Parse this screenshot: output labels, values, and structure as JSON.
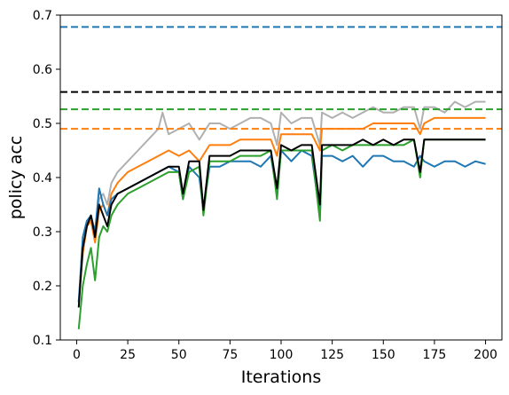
{
  "chart_data": {
    "type": "line",
    "xlabel": "Iterations",
    "ylabel": "policy acc",
    "xlim": [
      -8,
      208
    ],
    "ylim": [
      0.1,
      0.7
    ],
    "xticks": [
      0,
      25,
      50,
      75,
      100,
      125,
      150,
      175,
      200
    ],
    "yticks": [
      0.1,
      0.2,
      0.3,
      0.4,
      0.5,
      0.6,
      0.7
    ],
    "grid": false,
    "legend": "none",
    "baselines": [
      {
        "color": "#1f77b4",
        "y": 0.678
      },
      {
        "color": "#000000",
        "y": 0.558
      },
      {
        "color": "#2ca02c",
        "y": 0.526
      },
      {
        "color": "#ff7f0e",
        "y": 0.49
      }
    ],
    "series": [
      {
        "color": "#b0b0b0",
        "x": [
          1,
          3,
          5,
          7,
          9,
          11,
          13,
          15,
          17,
          20,
          25,
          30,
          35,
          40,
          42,
          45,
          50,
          55,
          60,
          65,
          70,
          75,
          80,
          85,
          90,
          95,
          98,
          100,
          105,
          110,
          115,
          119,
          120,
          125,
          130,
          135,
          140,
          145,
          150,
          155,
          160,
          165,
          168,
          170,
          175,
          180,
          185,
          190,
          195,
          200
        ],
        "y": [
          0.17,
          0.26,
          0.31,
          0.33,
          0.29,
          0.36,
          0.37,
          0.35,
          0.39,
          0.41,
          0.43,
          0.45,
          0.47,
          0.49,
          0.52,
          0.48,
          0.49,
          0.5,
          0.47,
          0.5,
          0.5,
          0.49,
          0.5,
          0.51,
          0.51,
          0.5,
          0.46,
          0.52,
          0.5,
          0.51,
          0.51,
          0.46,
          0.52,
          0.51,
          0.52,
          0.51,
          0.52,
          0.53,
          0.52,
          0.52,
          0.53,
          0.53,
          0.49,
          0.53,
          0.53,
          0.52,
          0.54,
          0.53,
          0.54,
          0.54
        ]
      },
      {
        "color": "#ff7f0e",
        "x": [
          1,
          3,
          5,
          7,
          9,
          11,
          13,
          15,
          17,
          20,
          25,
          30,
          35,
          40,
          45,
          50,
          55,
          60,
          65,
          70,
          75,
          80,
          85,
          90,
          95,
          98,
          100,
          105,
          110,
          115,
          119,
          120,
          125,
          130,
          135,
          140,
          145,
          150,
          155,
          160,
          165,
          168,
          170,
          175,
          180,
          185,
          190,
          195,
          200
        ],
        "y": [
          0.17,
          0.26,
          0.31,
          0.32,
          0.28,
          0.34,
          0.35,
          0.33,
          0.37,
          0.39,
          0.41,
          0.42,
          0.43,
          0.44,
          0.45,
          0.44,
          0.45,
          0.43,
          0.46,
          0.46,
          0.46,
          0.47,
          0.47,
          0.47,
          0.47,
          0.44,
          0.48,
          0.48,
          0.48,
          0.48,
          0.45,
          0.49,
          0.49,
          0.49,
          0.49,
          0.49,
          0.5,
          0.5,
          0.5,
          0.5,
          0.5,
          0.48,
          0.5,
          0.51,
          0.51,
          0.51,
          0.51,
          0.51,
          0.51
        ]
      },
      {
        "color": "#1f77b4",
        "x": [
          1,
          3,
          5,
          7,
          9,
          11,
          13,
          15,
          17,
          20,
          25,
          30,
          35,
          40,
          45,
          50,
          52,
          55,
          60,
          62,
          65,
          70,
          75,
          80,
          85,
          90,
          95,
          98,
          100,
          105,
          110,
          115,
          119,
          120,
          125,
          130,
          135,
          140,
          145,
          150,
          155,
          160,
          165,
          168,
          170,
          175,
          180,
          185,
          190,
          195,
          200
        ],
        "y": [
          0.17,
          0.29,
          0.32,
          0.33,
          0.3,
          0.38,
          0.35,
          0.33,
          0.36,
          0.37,
          0.38,
          0.39,
          0.4,
          0.41,
          0.42,
          0.41,
          0.36,
          0.42,
          0.4,
          0.34,
          0.42,
          0.42,
          0.43,
          0.43,
          0.43,
          0.42,
          0.44,
          0.37,
          0.45,
          0.43,
          0.45,
          0.44,
          0.33,
          0.44,
          0.44,
          0.43,
          0.44,
          0.42,
          0.44,
          0.44,
          0.43,
          0.43,
          0.42,
          0.44,
          0.43,
          0.42,
          0.43,
          0.43,
          0.42,
          0.43,
          0.425
        ]
      },
      {
        "color": "#2ca02c",
        "x": [
          1,
          3,
          5,
          7,
          9,
          11,
          13,
          15,
          17,
          20,
          25,
          30,
          35,
          40,
          45,
          50,
          52,
          55,
          60,
          62,
          65,
          70,
          75,
          80,
          85,
          90,
          95,
          98,
          100,
          105,
          110,
          115,
          119,
          120,
          125,
          130,
          135,
          140,
          145,
          150,
          155,
          160,
          165,
          168,
          170,
          175,
          180,
          185,
          190,
          195,
          200
        ],
        "y": [
          0.12,
          0.2,
          0.24,
          0.27,
          0.21,
          0.29,
          0.31,
          0.3,
          0.33,
          0.35,
          0.37,
          0.38,
          0.39,
          0.4,
          0.41,
          0.41,
          0.36,
          0.41,
          0.42,
          0.33,
          0.43,
          0.43,
          0.43,
          0.44,
          0.44,
          0.44,
          0.45,
          0.36,
          0.45,
          0.45,
          0.45,
          0.45,
          0.32,
          0.45,
          0.46,
          0.45,
          0.46,
          0.46,
          0.46,
          0.46,
          0.46,
          0.46,
          0.47,
          0.4,
          0.47,
          0.47,
          0.47,
          0.47,
          0.47,
          0.47,
          0.47
        ]
      },
      {
        "color": "#000000",
        "x": [
          1,
          3,
          5,
          7,
          9,
          11,
          13,
          15,
          17,
          20,
          25,
          30,
          35,
          40,
          45,
          50,
          52,
          55,
          60,
          62,
          65,
          70,
          75,
          80,
          85,
          90,
          95,
          98,
          100,
          105,
          110,
          115,
          119,
          120,
          125,
          130,
          135,
          140,
          145,
          150,
          155,
          160,
          165,
          168,
          170,
          175,
          180,
          185,
          190,
          195,
          200
        ],
        "y": [
          0.16,
          0.27,
          0.31,
          0.33,
          0.29,
          0.35,
          0.33,
          0.31,
          0.35,
          0.37,
          0.38,
          0.39,
          0.4,
          0.41,
          0.42,
          0.42,
          0.37,
          0.43,
          0.43,
          0.34,
          0.44,
          0.44,
          0.44,
          0.45,
          0.45,
          0.45,
          0.45,
          0.38,
          0.46,
          0.45,
          0.46,
          0.46,
          0.35,
          0.46,
          0.46,
          0.46,
          0.46,
          0.47,
          0.46,
          0.47,
          0.46,
          0.47,
          0.47,
          0.41,
          0.47,
          0.47,
          0.47,
          0.47,
          0.47,
          0.47,
          0.47
        ]
      }
    ]
  }
}
